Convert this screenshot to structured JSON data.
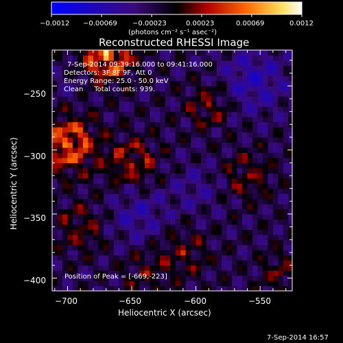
{
  "chart_data": {
    "type": "heatmap",
    "title": "Reconstructed RHESSI Image",
    "xlabel": "Heliocentric X (arcsec)",
    "ylabel": "Heliocentric Y (arcsec)",
    "xlim": [
      -712,
      -525
    ],
    "ylim": [
      -410,
      -222
    ],
    "x_ticks": [
      -700,
      -650,
      -600,
      -550
    ],
    "x_tick_labels": [
      "−700",
      "−650",
      "−600",
      "−550"
    ],
    "y_ticks": [
      -250,
      -300,
      -350,
      -400
    ],
    "y_tick_labels": [
      "−250",
      "−300",
      "−350",
      "−400"
    ],
    "colorbar": {
      "min": -0.0012,
      "max": 0.0012,
      "tick_labels": [
        "−0.0012",
        "−0.00069",
        "−0.00023",
        "0.00023",
        "0.00069",
        "0.0012"
      ],
      "units_label": "(photons cm⁻² s⁻¹ asec⁻²)",
      "colors": [
        "#0000ff",
        "#3a0a7a",
        "#000000",
        "#b00000",
        "#ff6a00",
        "#ffe060",
        "#ffffff"
      ]
    },
    "annotations": {
      "line1": "7-Sep-2014 09:39:16.000 to 09:41:16.000",
      "line2": "Detectors: 3F 8F 9F, Att 0",
      "line3": "Energy Range: 25.0 - 50.0 keV",
      "line4": "Clean     Total counts: 939.",
      "peak": "Position of Peak = [-669,-223]"
    },
    "footer_timestamp": "7-Sep-2014 16:57"
  }
}
